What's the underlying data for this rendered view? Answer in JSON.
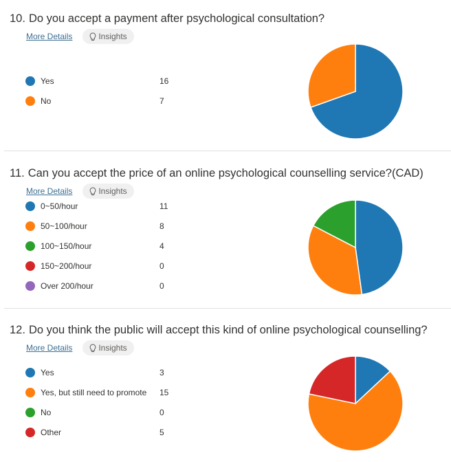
{
  "shared": {
    "more_details_label": "More Details",
    "insights_label": "Insights",
    "insights_icon": "lightbulb-icon"
  },
  "questions": [
    {
      "number": "10.",
      "title": "Do you accept a payment after psychological consultation?",
      "options": [
        {
          "label": "Yes",
          "count": "16",
          "color": "#1f77b4"
        },
        {
          "label": "No",
          "count": "7",
          "color": "#ff7f0e"
        }
      ]
    },
    {
      "number": "11.",
      "title": "Can you accept the price of an online psychological counselling service?(CAD)",
      "options": [
        {
          "label": "0~50/hour",
          "count": "11",
          "color": "#1f77b4"
        },
        {
          "label": "50~100/hour",
          "count": "8",
          "color": "#ff7f0e"
        },
        {
          "label": "100~150/hour",
          "count": "4",
          "color": "#2ca02c"
        },
        {
          "label": "150~200/hour",
          "count": "0",
          "color": "#d62728"
        },
        {
          "label": "Over 200/hour",
          "count": "0",
          "color": "#9467bd"
        }
      ]
    },
    {
      "number": "12.",
      "title": "Do you think the public will accept this kind of online psychological counselling?",
      "options": [
        {
          "label": "Yes",
          "count": "3",
          "color": "#1f77b4"
        },
        {
          "label": "Yes, but still need to promote",
          "count": "15",
          "color": "#ff7f0e"
        },
        {
          "label": "No",
          "count": "0",
          "color": "#2ca02c"
        },
        {
          "label": "Other",
          "count": "5",
          "color": "#d62728"
        }
      ]
    }
  ],
  "chart_data": [
    {
      "type": "pie",
      "title": "Do you accept a payment after psychological consultation?",
      "categories": [
        "Yes",
        "No"
      ],
      "values": [
        16,
        7
      ]
    },
    {
      "type": "pie",
      "title": "Can you accept the price of an online psychological counselling service?(CAD)",
      "categories": [
        "0~50/hour",
        "50~100/hour",
        "100~150/hour",
        "150~200/hour",
        "Over 200/hour"
      ],
      "values": [
        11,
        8,
        4,
        0,
        0
      ]
    },
    {
      "type": "pie",
      "title": "Do you think the public will accept this kind of online psychological counselling?",
      "categories": [
        "Yes",
        "Yes, but still need to promote",
        "No",
        "Other"
      ],
      "values": [
        3,
        15,
        0,
        5
      ]
    }
  ]
}
